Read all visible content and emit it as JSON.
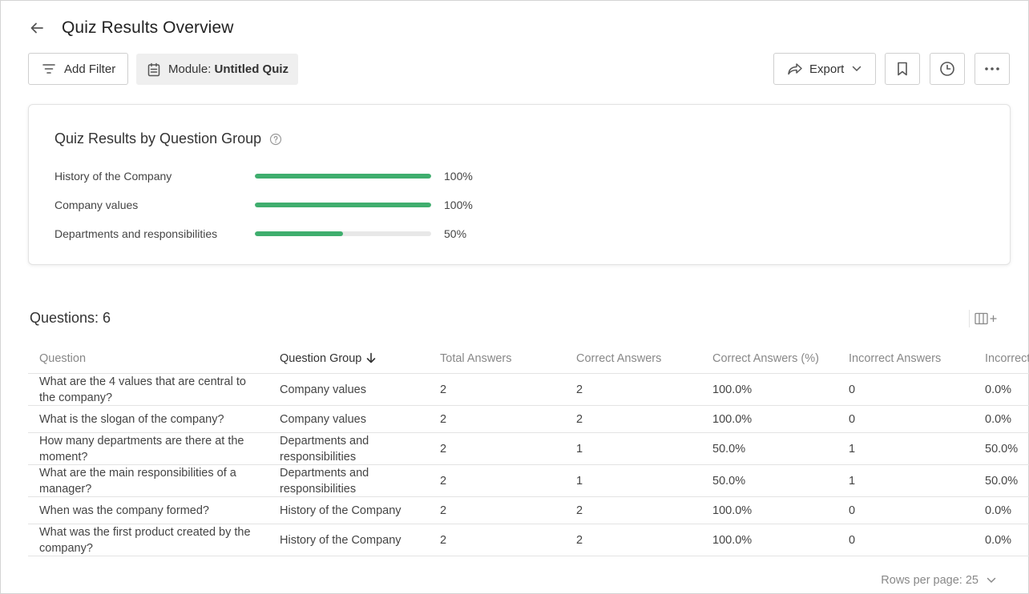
{
  "header": {
    "title": "Quiz Results Overview"
  },
  "toolbar": {
    "add_filter_label": "Add Filter",
    "module_prefix": "Module: ",
    "module_value": "Untitled Quiz",
    "export_label": "Export"
  },
  "summary": {
    "title": "Quiz Results by Question Group",
    "groups": [
      {
        "label": "History of the Company",
        "percent_text": "100%",
        "percent": 100
      },
      {
        "label": "Company values",
        "percent_text": "100%",
        "percent": 100
      },
      {
        "label": "Departments and responsibilities",
        "percent_text": "50%",
        "percent": 50
      }
    ]
  },
  "questions": {
    "title": "Questions: 6",
    "columns": [
      "Question",
      "Question Group",
      "Total Answers",
      "Correct Answers",
      "Correct Answers (%)",
      "Incorrect Answers",
      "Incorrect"
    ],
    "sorted_column": 1,
    "rows": [
      [
        "What are the 4 values that are central to the company?",
        "Company values",
        "2",
        "2",
        "100.0%",
        "0",
        "0.0%"
      ],
      [
        "What is the slogan of the company?",
        "Company values",
        "2",
        "2",
        "100.0%",
        "0",
        "0.0%"
      ],
      [
        "How many departments are there at the moment?",
        "Departments and responsibilities",
        "2",
        "1",
        "50.0%",
        "1",
        "50.0%"
      ],
      [
        "What are the main responsibilities of a manager?",
        "Departments and responsibilities",
        "2",
        "1",
        "50.0%",
        "1",
        "50.0%"
      ],
      [
        "When was the company formed?",
        "History of the Company",
        "2",
        "2",
        "100.0%",
        "0",
        "0.0%"
      ],
      [
        "What was the first product created by the company?",
        "History of the Company",
        "2",
        "2",
        "100.0%",
        "0",
        "0.0%"
      ]
    ]
  },
  "pagination": {
    "rows_per_page_label": "Rows per page: 25"
  },
  "colors": {
    "bar_fill": "#3fae6e",
    "bar_track": "#e8e8e8"
  },
  "icons": [
    "back-arrow-icon",
    "filter-lines-icon",
    "calendar-icon",
    "share-arrow-icon",
    "chevron-down-icon",
    "bookmark-icon",
    "clock-icon",
    "more-dots-icon",
    "help-circle-icon",
    "columns-add-icon",
    "sort-down-arrow-icon"
  ]
}
